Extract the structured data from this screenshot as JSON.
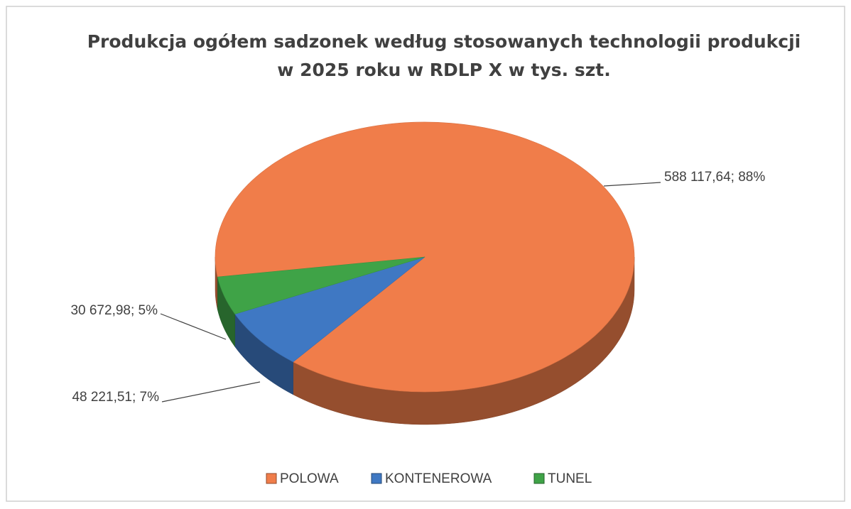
{
  "chart_data": {
    "type": "pie",
    "title": [
      "Produkcja ogółem sadzonek według stosowanych technologii produkcji",
      "w 2025 roku w RDLP X w tys. szt."
    ],
    "categories": [
      "POLOWA",
      "KONTENEROWA",
      "TUNEL"
    ],
    "values": [
      588117.64,
      48221.51,
      30672.98
    ],
    "value_labels": [
      "588 117,64; 88%",
      "48 221,51; 7%",
      "30 672,98; 5%"
    ],
    "colors": [
      "#f07d4a",
      "#3f78c3",
      "#3fa347"
    ],
    "legend": "bottom"
  }
}
